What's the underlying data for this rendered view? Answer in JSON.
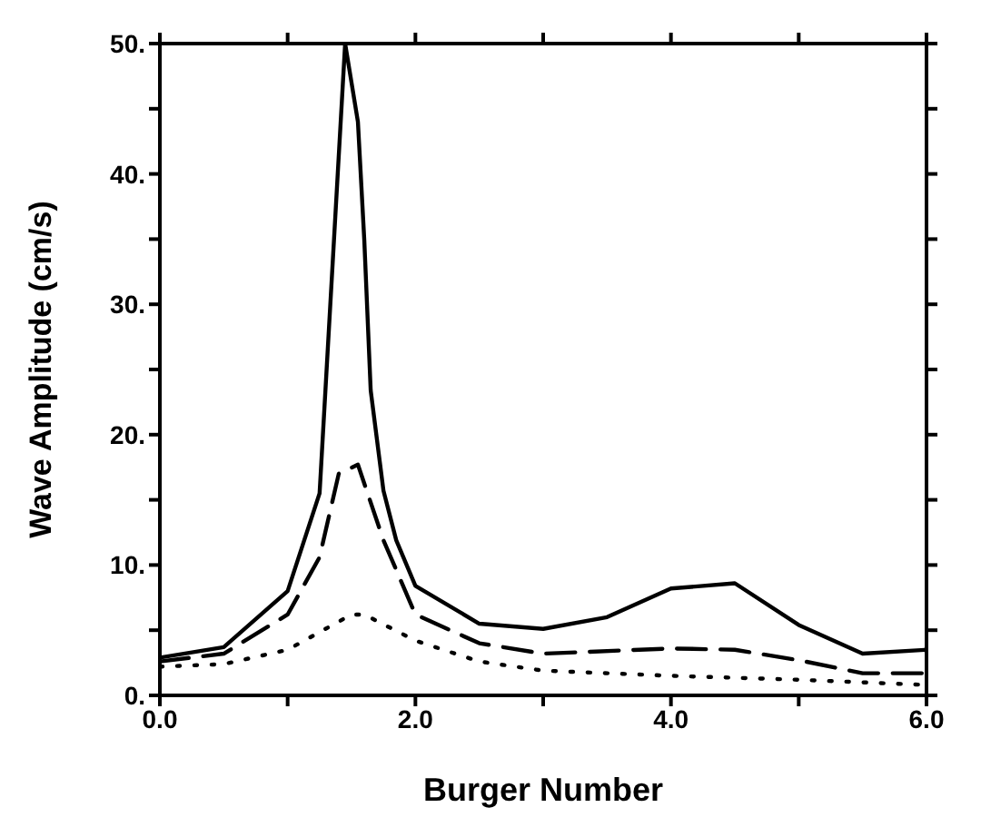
{
  "chart_data": {
    "type": "line",
    "xlabel": "Burger Number",
    "ylabel": "Wave Amplitude (cm/s)",
    "xlim": [
      0,
      6
    ],
    "ylim": [
      0,
      50
    ],
    "xticks": [
      {
        "value": 0,
        "label": "0.0"
      },
      {
        "value": 1,
        "label": null
      },
      {
        "value": 2,
        "label": "2.0"
      },
      {
        "value": 3,
        "label": null
      },
      {
        "value": 4,
        "label": "4.0"
      },
      {
        "value": 5,
        "label": null
      },
      {
        "value": 6,
        "label": "6.0"
      }
    ],
    "yticks": [
      {
        "value": 0,
        "label": "0."
      },
      {
        "value": 5,
        "label": null
      },
      {
        "value": 10,
        "label": "10."
      },
      {
        "value": 15,
        "label": null
      },
      {
        "value": 20,
        "label": "20."
      },
      {
        "value": 25,
        "label": null
      },
      {
        "value": 30,
        "label": "30."
      },
      {
        "value": 35,
        "label": null
      },
      {
        "value": 40,
        "label": "40."
      },
      {
        "value": 45,
        "label": null
      },
      {
        "value": 50,
        "label": "50."
      }
    ],
    "grid": false,
    "marker": "none",
    "series": [
      {
        "color": "#000000",
        "line_style": "solid",
        "x": [
          0,
          0.5,
          1.0,
          1.25,
          1.45,
          1.55,
          1.6,
          1.65,
          1.75,
          1.85,
          2.0,
          2.5,
          3.0,
          3.5,
          4.0,
          4.5,
          5.0,
          5.5,
          6.0
        ],
        "values": [
          2.9,
          3.7,
          8.0,
          15.5,
          50,
          44,
          34.9,
          23.4,
          15.7,
          11.9,
          8.4,
          5.5,
          5.1,
          6.0,
          8.2,
          8.6,
          5.4,
          3.2,
          3.5
        ]
      },
      {
        "color": "#000000",
        "line_style": "dashed",
        "x": [
          0,
          0.5,
          1.0,
          1.25,
          1.4,
          1.55,
          1.75,
          2.0,
          2.5,
          3.0,
          4.0,
          4.5,
          5.0,
          5.5,
          6.0
        ],
        "values": [
          2.6,
          3.2,
          6.2,
          10.6,
          17.0,
          17.7,
          11.9,
          6.2,
          4.0,
          3.2,
          3.6,
          3.5,
          2.7,
          1.7,
          1.7
        ]
      },
      {
        "color": "#000000",
        "line_style": "dotted",
        "x": [
          0,
          0.5,
          1.0,
          1.5,
          1.6,
          2.0,
          2.5,
          3.0,
          4.0,
          5.0,
          6.0
        ],
        "values": [
          2.2,
          2.4,
          3.5,
          6.2,
          6.2,
          4.2,
          2.6,
          1.9,
          1.5,
          1.2,
          0.8
        ]
      }
    ]
  }
}
